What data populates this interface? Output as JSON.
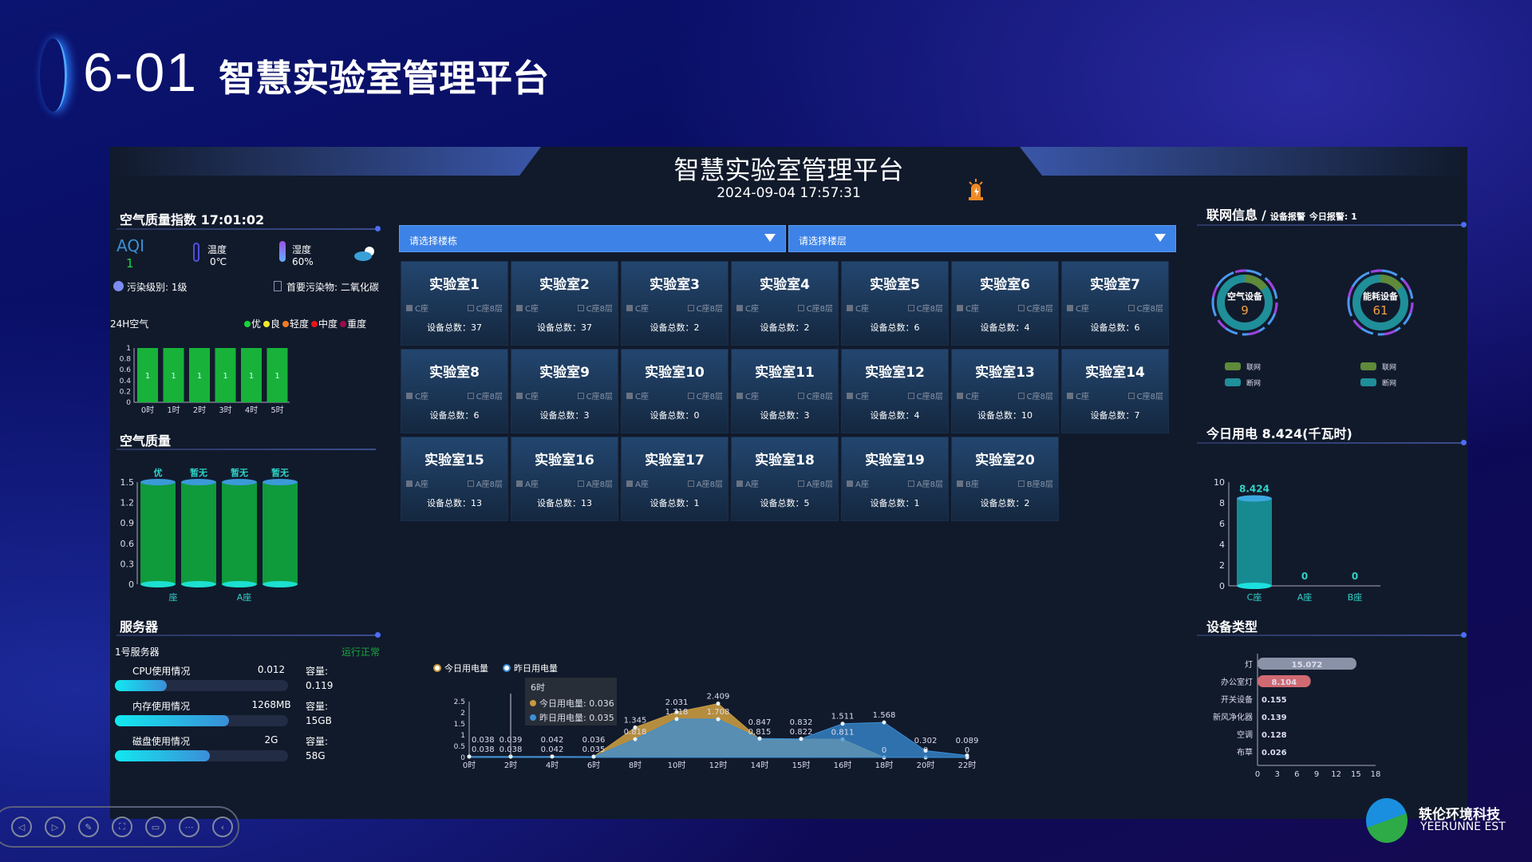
{
  "slide": {
    "number": "6-01",
    "title": "智慧实验室管理平台"
  },
  "header": {
    "title": "智慧实验室管理平台",
    "datetime": "2024-09-04 17:57:31",
    "alarm_icon": "alarm-light-icon"
  },
  "air_index": {
    "title": "空气质量指数 17:01:02",
    "aqi_label": "AQI",
    "aqi_value": "1",
    "temp_label": "温度",
    "temp_value": "0℃",
    "humidity_label": "湿度",
    "humidity_value": "60%",
    "weather_icon": "cloudy-icon",
    "pollution_level": "污染级别: 1级",
    "main_pollutant": "首要污染物: 二氧化碳"
  },
  "h24": {
    "label": "24H空气",
    "legend": [
      {
        "name": "优",
        "color": "#18d53a"
      },
      {
        "name": "良",
        "color": "#f2e82a"
      },
      {
        "name": "轻度",
        "color": "#f47a20"
      },
      {
        "name": "中度",
        "color": "#e8141c"
      },
      {
        "name": "重度",
        "color": "#9a0c4c"
      }
    ]
  },
  "air_quality": {
    "title": "空气质量"
  },
  "server": {
    "title": "服务器",
    "name": "1号服务器",
    "status": "运行正常",
    "status_color": "#17a83a",
    "rows": [
      {
        "label": "CPU使用情况",
        "value": "0.012",
        "cap_label": "容量:",
        "cap": "0.119",
        "fill": 0.3
      },
      {
        "label": "内存使用情况",
        "value": "1268MB",
        "cap_label": "容量:",
        "cap": "15GB",
        "fill": 0.66
      },
      {
        "label": "磁盘使用情况",
        "value": "2G",
        "cap_label": "容量:",
        "cap": "58G",
        "fill": 0.55
      }
    ]
  },
  "filters": {
    "building_placeholder": "请选择楼栋",
    "floor_placeholder": "请选择楼层"
  },
  "labs": [
    {
      "name": "实验室1",
      "building": "C座",
      "floor": "C座8层",
      "devices": "设备总数：37"
    },
    {
      "name": "实验室2",
      "building": "C座",
      "floor": "C座8层",
      "devices": "设备总数：37"
    },
    {
      "name": "实验室3",
      "building": "C座",
      "floor": "C座8层",
      "devices": "设备总数：2"
    },
    {
      "name": "实验室4",
      "building": "C座",
      "floor": "C座8层",
      "devices": "设备总数：2"
    },
    {
      "name": "实验室5",
      "building": "C座",
      "floor": "C座8层",
      "devices": "设备总数：6"
    },
    {
      "name": "实验室6",
      "building": "C座",
      "floor": "C座8层",
      "devices": "设备总数：4"
    },
    {
      "name": "实验室7",
      "building": "C座",
      "floor": "C座8层",
      "devices": "设备总数：6"
    },
    {
      "name": "实验室8",
      "building": "C座",
      "floor": "C座8层",
      "devices": "设备总数：6"
    },
    {
      "name": "实验室9",
      "building": "C座",
      "floor": "C座8层",
      "devices": "设备总数：3"
    },
    {
      "name": "实验室10",
      "building": "C座",
      "floor": "C座8层",
      "devices": "设备总数：0"
    },
    {
      "name": "实验室11",
      "building": "C座",
      "floor": "C座8层",
      "devices": "设备总数：3"
    },
    {
      "name": "实验室12",
      "building": "C座",
      "floor": "C座8层",
      "devices": "设备总数：4"
    },
    {
      "name": "实验室13",
      "building": "C座",
      "floor": "C座8层",
      "devices": "设备总数：10"
    },
    {
      "name": "实验室14",
      "building": "C座",
      "floor": "C座8层",
      "devices": "设备总数：7"
    },
    {
      "name": "实验室15",
      "building": "A座",
      "floor": "A座8层",
      "devices": "设备总数：13"
    },
    {
      "name": "实验室16",
      "building": "A座",
      "floor": "A座8层",
      "devices": "设备总数：13"
    },
    {
      "name": "实验室17",
      "building": "A座",
      "floor": "A座8层",
      "devices": "设备总数：1"
    },
    {
      "name": "实验室18",
      "building": "A座",
      "floor": "A座8层",
      "devices": "设备总数：5"
    },
    {
      "name": "实验室19",
      "building": "A座",
      "floor": "A座8层",
      "devices": "设备总数：1"
    },
    {
      "name": "实验室20",
      "building": "B座",
      "floor": "B座8层",
      "devices": "设备总数：2"
    }
  ],
  "network": {
    "title": "联网信息",
    "sep": "/",
    "alarm_label": "设备报警",
    "today_alarm": "今日报警: 1",
    "gauges": [
      {
        "label": "空气设备",
        "value": "9",
        "online_fraction": 0.15,
        "legend": [
          "联网",
          "断网"
        ]
      },
      {
        "label": "能耗设备",
        "value": "61",
        "online_fraction": 0.15,
        "legend": [
          "联网",
          "断网"
        ]
      }
    ],
    "online_color": "#5e8a3a",
    "offline_color": "#1f8f9a"
  },
  "power_today": {
    "title": "今日用电 8.424(千瓦时)"
  },
  "device_type": {
    "title": "设备类型"
  },
  "logo": {
    "cn": "轶伦环境科技",
    "en": "YEERUNNE EST"
  },
  "toolbar": [
    "prev-icon",
    "next-icon",
    "pen-icon",
    "screenshot-icon",
    "screen-icon",
    "more-icon",
    "back-icon"
  ],
  "chart_data": [
    {
      "type": "bar",
      "id": "h24",
      "categories": [
        "0时",
        "1时",
        "2时",
        "3时",
        "4时",
        "5时"
      ],
      "values": [
        1,
        1,
        1,
        1,
        1,
        1
      ],
      "ylim": [
        0,
        1
      ],
      "yticks": [
        "0",
        "0.2",
        "0.4",
        "0.6",
        "0.8",
        "1"
      ],
      "color": "#18b23a"
    },
    {
      "type": "bar",
      "id": "air",
      "categories": [
        "C座",
        "",
        "A座",
        ""
      ],
      "visible_xlabels": [
        "座",
        "A座"
      ],
      "values": [
        1.5,
        1.5,
        1.5,
        1.5
      ],
      "top_labels": [
        "优",
        "暂无",
        "暂无",
        "暂无"
      ],
      "ylim": [
        0,
        1.5
      ],
      "yticks": [
        "0",
        "0.3",
        "0.6",
        "0.9",
        "1.2",
        "1.5"
      ]
    },
    {
      "type": "area",
      "id": "power",
      "categories": [
        "0时",
        "2时",
        "4时",
        "6时",
        "8时",
        "10时",
        "12时",
        "14时",
        "15时",
        "16时",
        "18时",
        "20时",
        "22时"
      ],
      "yticks": [
        "0",
        "0.5",
        "1",
        "1.5",
        "2",
        "2.5"
      ],
      "ylim": [
        0,
        2.5
      ],
      "series": [
        {
          "name": "今日用电量",
          "color": "#c89a40",
          "values": [
            0.038,
            0.039,
            0.042,
            0.036,
            1.345,
            2.031,
            2.409,
            0.815,
            0.822,
            0.811,
            0,
            0,
            0
          ]
        },
        {
          "name": "昨日用电量",
          "color": "#3a8fd8",
          "values": [
            0.038,
            0.038,
            0.042,
            0.035,
            0.818,
            1.718,
            1.708,
            0.847,
            0.832,
            1.511,
            1.568,
            0.302,
            0.089
          ]
        }
      ],
      "tooltip": {
        "title": "6时",
        "rows": [
          "今日用电量: 0.036",
          "昨日用电量: 0.035"
        ]
      }
    },
    {
      "type": "bar",
      "id": "today",
      "categories": [
        "C座",
        "A座",
        "B座"
      ],
      "values": [
        8.424,
        0,
        0
      ],
      "labels": [
        "8.424",
        "0",
        "0"
      ],
      "ylim": [
        0,
        10
      ],
      "yticks": [
        "0",
        "2",
        "4",
        "6",
        "8",
        "10"
      ]
    },
    {
      "type": "bar",
      "orientation": "horizontal",
      "id": "devtype",
      "categories": [
        "灯",
        "办公室灯",
        "开关设备",
        "新风净化器",
        "空调",
        "布草"
      ],
      "values": [
        15.072,
        8.104,
        0.155,
        0.139,
        0.128,
        0.026
      ],
      "labels": [
        "15.072",
        "8.104",
        "0.155",
        "0.139",
        "0.128",
        "0.026"
      ],
      "xlim": [
        0,
        18
      ],
      "xticks": [
        "0",
        "3",
        "6",
        "9",
        "12",
        "15",
        "18"
      ]
    }
  ]
}
